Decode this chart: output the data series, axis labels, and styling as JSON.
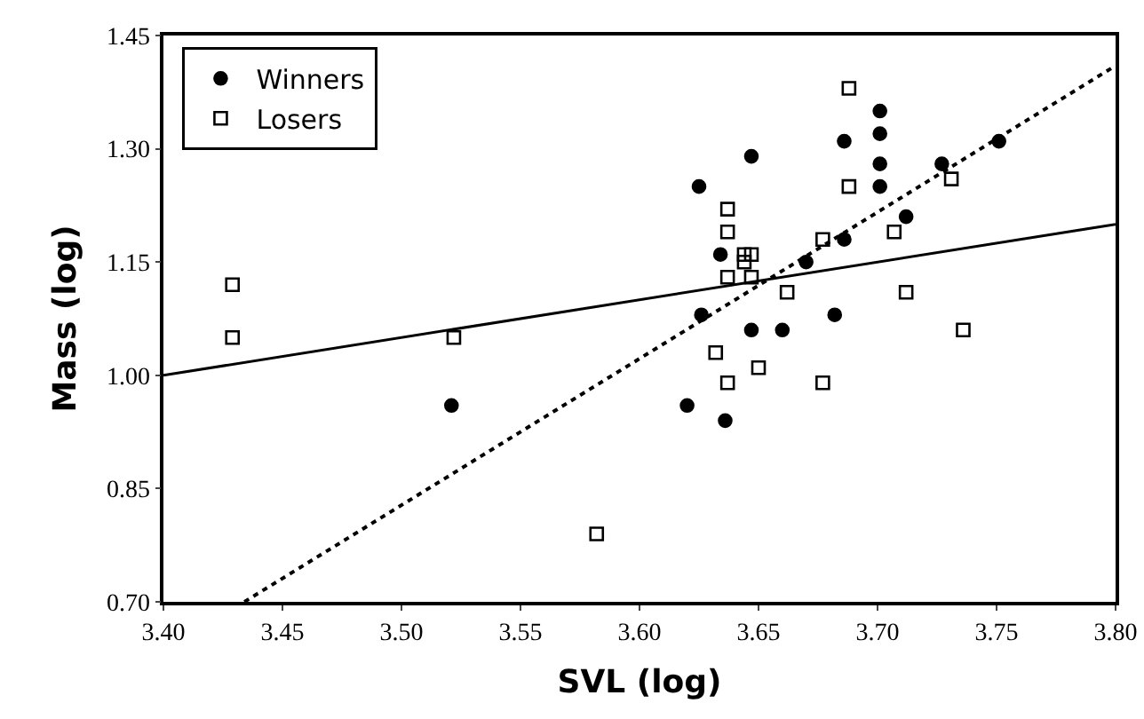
{
  "chart_data": {
    "type": "scatter",
    "xlabel": "SVL (log)",
    "ylabel": "Mass (log)",
    "xlim": [
      3.4,
      3.8
    ],
    "xticks": [
      {
        "value": 3.4,
        "label": "3.40"
      },
      {
        "value": 3.45,
        "label": "3.45"
      },
      {
        "value": 3.5,
        "label": "3.50"
      },
      {
        "value": 3.55,
        "label": "3.55"
      },
      {
        "value": 3.6,
        "label": "3.60"
      },
      {
        "value": 3.65,
        "label": "3.65"
      },
      {
        "value": 3.7,
        "label": "3.70"
      },
      {
        "value": 3.75,
        "label": "3.75"
      },
      {
        "value": 3.8,
        "label": "3.80"
      }
    ],
    "ylim": [
      0.7,
      1.45
    ],
    "yticks": [
      {
        "value": 0.7,
        "label": "0.70"
      },
      {
        "value": 0.85,
        "label": "0.85"
      },
      {
        "value": 1.0,
        "label": "1.00"
      },
      {
        "value": 1.15,
        "label": "1.15"
      },
      {
        "value": 1.3,
        "label": "1.30"
      },
      {
        "value": 1.45,
        "label": "1.45"
      }
    ],
    "grid": false,
    "legend": "top left",
    "series": [
      {
        "name": "Winners",
        "type": "scatter",
        "marker": "circle",
        "color": "#000000",
        "x": [
          3.521,
          3.62,
          3.636,
          3.626,
          3.625,
          3.634,
          3.647,
          3.647,
          3.66,
          3.67,
          3.682,
          3.686,
          3.686,
          3.701,
          3.701,
          3.701,
          3.701,
          3.712,
          3.727,
          3.751
        ],
        "values": [
          0.96,
          0.96,
          0.94,
          1.08,
          1.25,
          1.16,
          1.29,
          1.06,
          1.06,
          1.15,
          1.08,
          1.31,
          1.18,
          1.35,
          1.32,
          1.28,
          1.25,
          1.21,
          1.28,
          1.31
        ]
      },
      {
        "name": "Losers",
        "type": "scatter",
        "marker": "square",
        "color": "#000000",
        "x": [
          3.429,
          3.429,
          3.522,
          3.582,
          3.688,
          3.688,
          3.637,
          3.637,
          3.644,
          3.647,
          3.644,
          3.637,
          3.647,
          3.677,
          3.707,
          3.731,
          3.662,
          3.712,
          3.736,
          3.632,
          3.637,
          3.65,
          3.677
        ],
        "values": [
          1.05,
          1.12,
          1.05,
          0.79,
          1.38,
          1.25,
          1.22,
          1.19,
          1.16,
          1.16,
          1.15,
          1.13,
          1.13,
          1.18,
          1.19,
          1.26,
          1.11,
          1.11,
          1.06,
          1.03,
          0.99,
          1.01,
          0.99
        ]
      },
      {
        "type": "line",
        "line_style": "dotted",
        "color": "#000000",
        "x": [
          3.434,
          3.8
        ],
        "values": [
          0.7,
          1.41
        ]
      },
      {
        "type": "line",
        "line_style": "solid",
        "color": "#000000",
        "x": [
          3.4,
          3.8
        ],
        "values": [
          1.0,
          1.2
        ]
      }
    ]
  }
}
